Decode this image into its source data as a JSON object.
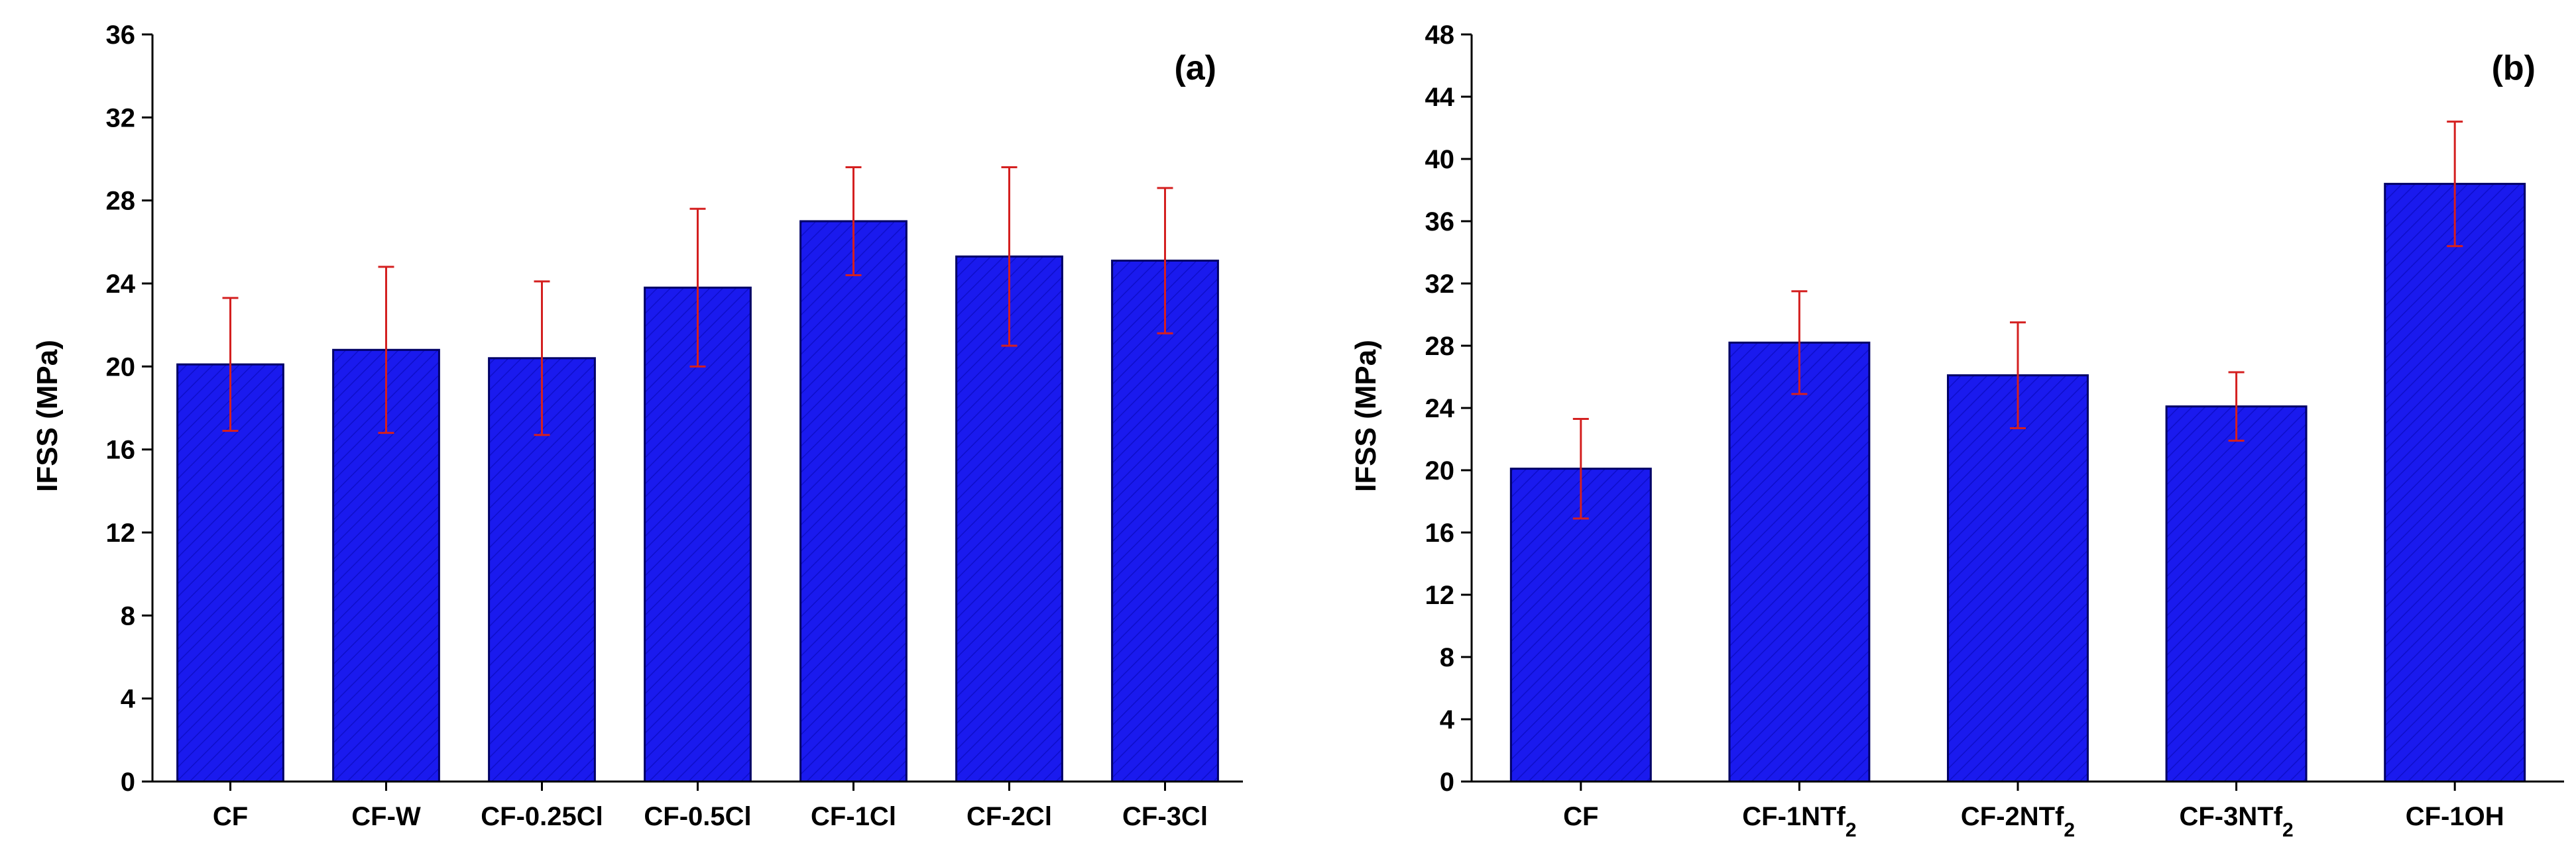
{
  "colors": {
    "bar_fill": "#1a1aee",
    "bar_edge": "#000066",
    "hatch": "#0000a0",
    "error_bar": "#d42020",
    "axis": "#000000"
  },
  "chart_data": [
    {
      "type": "bar",
      "panel_label": "(a)",
      "ylabel": "IFSS (MPa)",
      "xlabel": "",
      "ylim": [
        0,
        36
      ],
      "yticks": [
        0,
        4,
        8,
        12,
        16,
        20,
        24,
        28,
        32,
        36
      ],
      "categories": [
        {
          "text": "CF",
          "sub": ""
        },
        {
          "text": "CF-W",
          "sub": ""
        },
        {
          "text": "CF-0.25Cl",
          "sub": ""
        },
        {
          "text": "CF-0.5Cl",
          "sub": ""
        },
        {
          "text": "CF-1Cl",
          "sub": ""
        },
        {
          "text": "CF-2Cl",
          "sub": ""
        },
        {
          "text": "CF-3Cl",
          "sub": ""
        }
      ],
      "values": [
        20.1,
        20.8,
        20.4,
        23.8,
        27.0,
        25.3,
        25.1
      ],
      "errors": [
        3.2,
        4.0,
        3.7,
        3.8,
        2.6,
        4.3,
        3.5
      ]
    },
    {
      "type": "bar",
      "panel_label": "(b)",
      "ylabel": "IFSS (MPa)",
      "xlabel": "",
      "ylim": [
        0,
        48
      ],
      "yticks": [
        0,
        4,
        8,
        12,
        16,
        20,
        24,
        28,
        32,
        36,
        40,
        44,
        48
      ],
      "categories": [
        {
          "text": "CF",
          "sub": ""
        },
        {
          "text": "CF-1NTf",
          "sub": "2"
        },
        {
          "text": "CF-2NTf",
          "sub": "2"
        },
        {
          "text": "CF-3NTf",
          "sub": "2"
        },
        {
          "text": "CF-1OH",
          "sub": ""
        }
      ],
      "values": [
        20.1,
        28.2,
        26.1,
        24.1,
        38.4
      ],
      "errors": [
        3.2,
        3.3,
        3.4,
        2.2,
        4.0
      ]
    }
  ]
}
